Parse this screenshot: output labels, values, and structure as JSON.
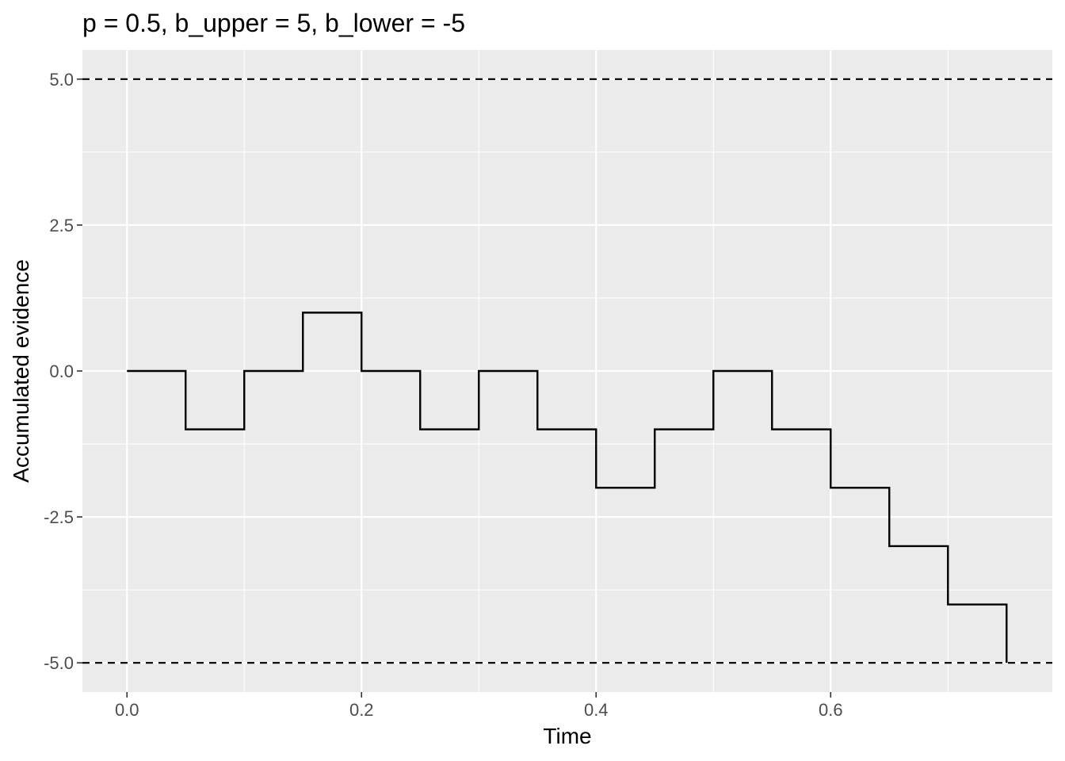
{
  "chart_data": {
    "type": "line",
    "title": "p = 0.5, b_upper = 5, b_lower = -5",
    "xlabel": "Time",
    "ylabel": "Accumulated evidence",
    "xlim": [
      -0.038,
      0.789
    ],
    "ylim": [
      -5.5,
      5.5
    ],
    "x_ticks": [
      0.0,
      0.2,
      0.4,
      0.6
    ],
    "x_tick_labels": [
      "0.0",
      "0.2",
      "0.4",
      "0.6"
    ],
    "x_minor_ticks": [
      0.1,
      0.3,
      0.5,
      0.7
    ],
    "y_ticks": [
      -5.0,
      -2.5,
      0.0,
      2.5,
      5.0
    ],
    "y_tick_labels": [
      "-5.0",
      "-2.5",
      "0.0",
      "2.5",
      "5.0"
    ],
    "y_minor_ticks": [
      -3.75,
      -1.25,
      1.25,
      3.75
    ],
    "grid": true,
    "background": "#ebebeb",
    "grid_color": "#ffffff",
    "series": [
      {
        "style": "step",
        "color": "#000000",
        "x": [
          0.0,
          0.05,
          0.1,
          0.15,
          0.2,
          0.25,
          0.3,
          0.35,
          0.4,
          0.45,
          0.5,
          0.55,
          0.6,
          0.65,
          0.7,
          0.75
        ],
        "values": [
          0,
          -1,
          0,
          1,
          0,
          -1,
          0,
          -1,
          -2,
          -1,
          0,
          -1,
          -2,
          -3,
          -4,
          -5
        ]
      }
    ],
    "hlines": [
      {
        "y": 5,
        "linetype": "dashed",
        "color": "#000000"
      },
      {
        "y": -5,
        "linetype": "dashed",
        "color": "#000000"
      }
    ]
  }
}
